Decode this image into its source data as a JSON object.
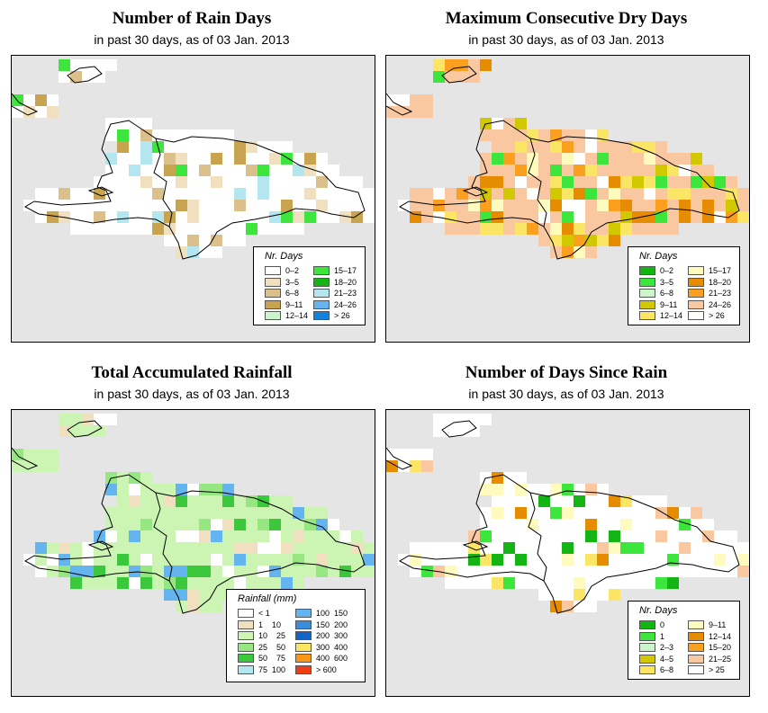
{
  "panels": [
    {
      "title": "Number of Rain Days",
      "subtitle": "in past 30 days, as of  03 Jan. 2013",
      "legend": {
        "title": "Nr. Days",
        "items": [
          {
            "label": "0–2",
            "color": "#ffffff"
          },
          {
            "label": "3–5",
            "color": "#f0e0c0"
          },
          {
            "label": "6–8",
            "color": "#dcc08c"
          },
          {
            "label": "9–11",
            "color": "#c8a450"
          },
          {
            "label": "12–14",
            "color": "#ccf5cc"
          },
          {
            "label": "15–17",
            "color": "#3ce63c"
          },
          {
            "label": "18–20",
            "color": "#14b414"
          },
          {
            "label": "21–23",
            "color": "#b4e6f0"
          },
          {
            "label": "24–26",
            "color": "#64b4f0"
          },
          {
            "label": "> 26",
            "color": "#1482dc"
          }
        ]
      }
    },
    {
      "title": "Maximum Consecutive Dry Days",
      "subtitle": "in past 30 days, as of  03 Jan. 2013",
      "legend": {
        "title": "Nr. Days",
        "items": [
          {
            "label": "0–2",
            "color": "#14b414"
          },
          {
            "label": "3–5",
            "color": "#3ce63c"
          },
          {
            "label": "6–8",
            "color": "#ccf5cc"
          },
          {
            "label": "9–11",
            "color": "#d2c800"
          },
          {
            "label": "12–14",
            "color": "#fae664"
          },
          {
            "label": "15–17",
            "color": "#fffabe"
          },
          {
            "label": "18–20",
            "color": "#e68c00"
          },
          {
            "label": "21–23",
            "color": "#faa01e"
          },
          {
            "label": "24–26",
            "color": "#fac8a0"
          },
          {
            "label": "> 26",
            "color": "#ffffff"
          }
        ]
      }
    },
    {
      "title": "Total Accumulated Rainfall",
      "subtitle": "in past 30 days, as of  03 Jan. 2013",
      "legend": {
        "title": "Rainfall (mm)",
        "items": [
          {
            "label": "< 1",
            "color": "#ffffff"
          },
          {
            "label": "1    10",
            "color": "#f0e0c0"
          },
          {
            "label": "10    25",
            "color": "#ccf5b4"
          },
          {
            "label": "25    50",
            "color": "#96e682"
          },
          {
            "label": "50    75",
            "color": "#3cc83c"
          },
          {
            "label": "75  100",
            "color": "#b4e6f0"
          },
          {
            "label": "100  150",
            "color": "#64b4f0"
          },
          {
            "label": "150  200",
            "color": "#3c8cdc"
          },
          {
            "label": "200  300",
            "color": "#1464c8"
          },
          {
            "label": "300  400",
            "color": "#fae664"
          },
          {
            "label": "400  600",
            "color": "#fa9614"
          },
          {
            "label": "> 600",
            "color": "#f03c14"
          }
        ]
      }
    },
    {
      "title": "Number of Days Since Rain",
      "subtitle": "in past 30 days, as of  03 Jan. 2013",
      "legend": {
        "title": "Nr. Days",
        "items": [
          {
            "label": "0",
            "color": "#14b414"
          },
          {
            "label": "1",
            "color": "#3ce63c"
          },
          {
            "label": "2–3",
            "color": "#ccf5cc"
          },
          {
            "label": "4–5",
            "color": "#d2c800"
          },
          {
            "label": "6–8",
            "color": "#fae664"
          },
          {
            "label": "9–11",
            "color": "#fffabe"
          },
          {
            "label": "12–14",
            "color": "#e68c00"
          },
          {
            "label": "15–20",
            "color": "#faa01e"
          },
          {
            "label": "21–25",
            "color": "#fac8a0"
          },
          {
            "label": "> 25",
            "color": "#ffffff"
          }
        ]
      }
    }
  ]
}
